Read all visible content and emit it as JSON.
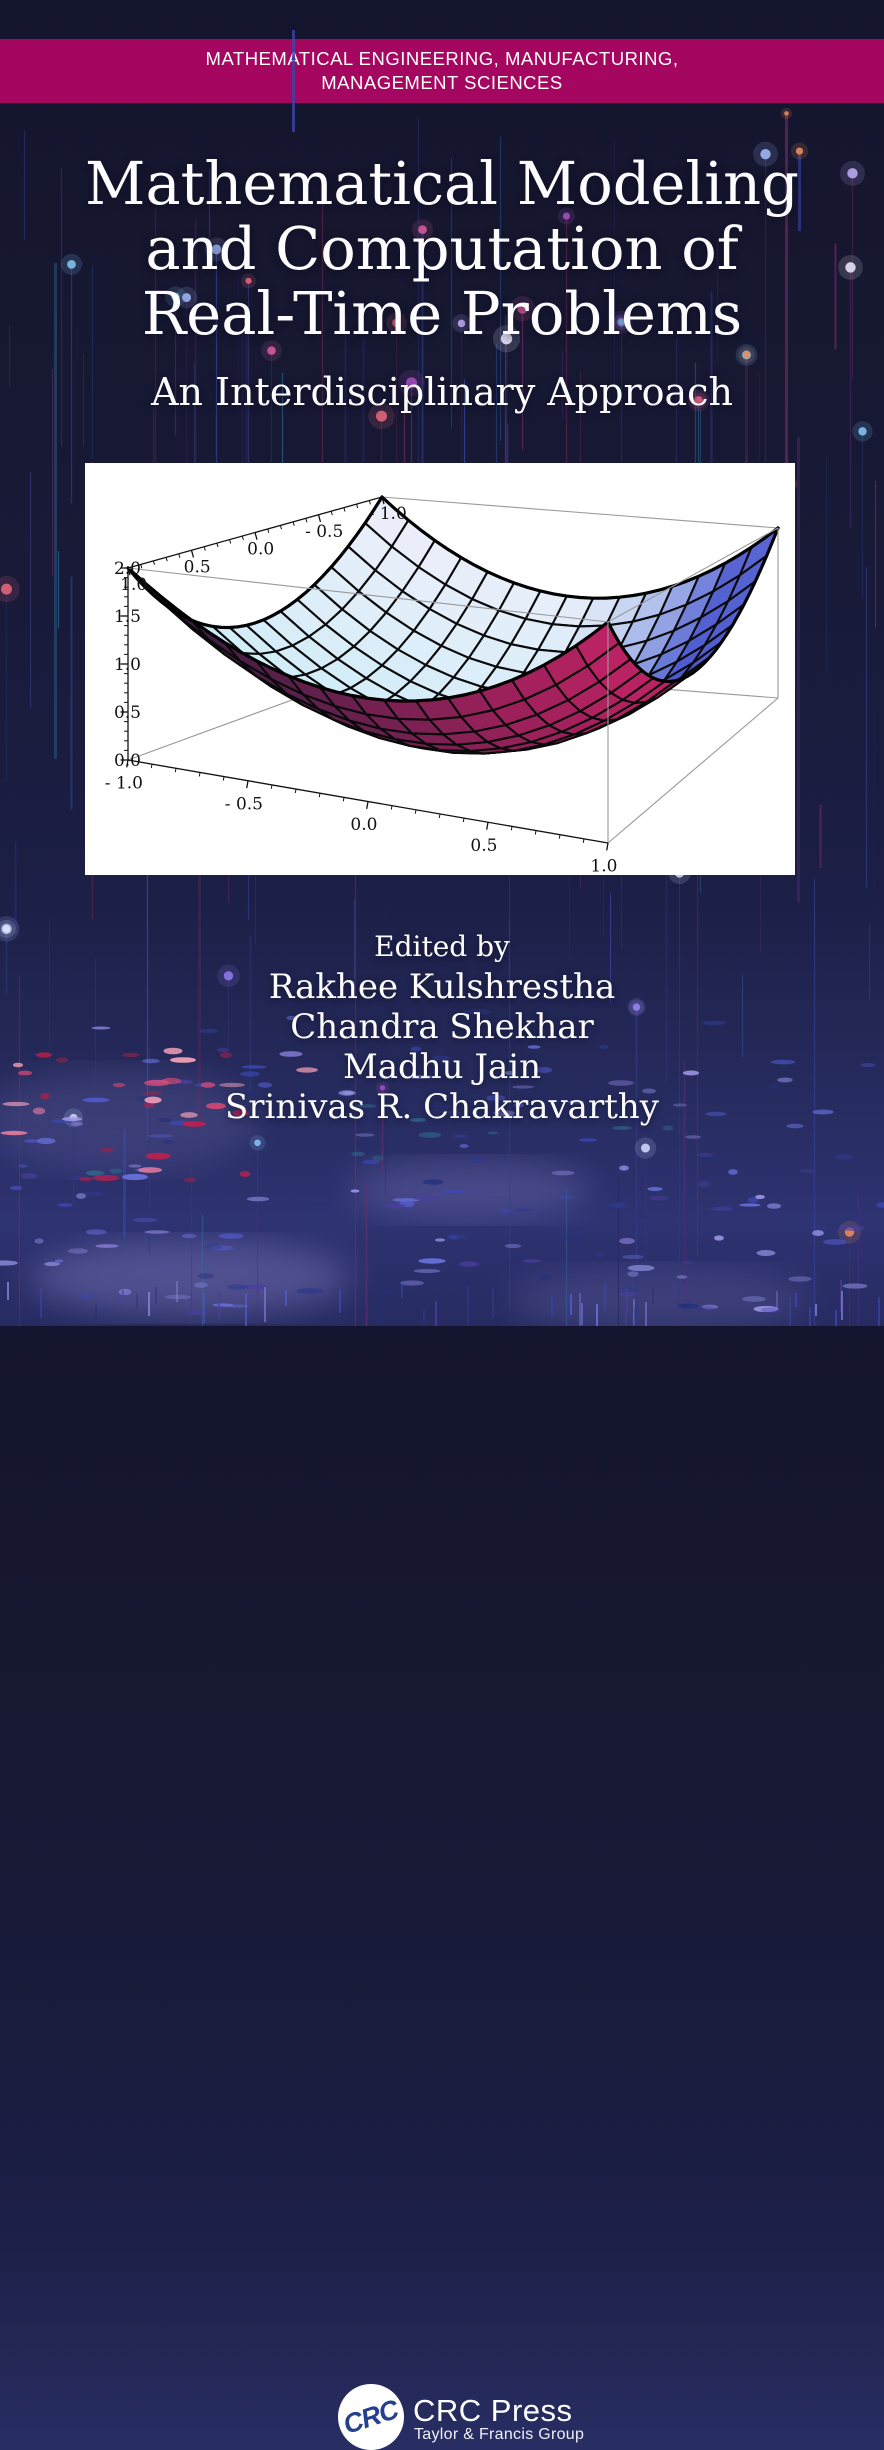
{
  "cover": {
    "series_banner": {
      "line1": "MATHEMATICAL ENGINEERING, MANUFACTURING,",
      "line2": "MANAGEMENT SCIENCES",
      "background_color": "#a5065f",
      "text_color": "#ffffff"
    },
    "title_lines": [
      "Mathematical Modeling",
      "and Computation of",
      "Real-Time Problems"
    ],
    "subtitle": "An Interdisciplinary Approach",
    "edited_by_label": "Edited by",
    "editors": [
      "Rakhee Kulshrestha",
      "Chandra Shekhar",
      "Madhu Jain",
      "Srinivas R. Chakravarthy"
    ],
    "publisher": {
      "logo_text": "CRC",
      "name": "CRC Press",
      "tagline": "Taylor & Francis Group",
      "logo_text_color": "#24408e"
    },
    "background": {
      "base_navy": "#16172f",
      "streak_colors": [
        "#23255c",
        "#2b2e6e",
        "#33377f",
        "#3a4fae",
        "#274683",
        "#4a2f86",
        "#5d2b79",
        "#722a63",
        "#8c2a57",
        "#2f6f9e",
        "#3c44a8"
      ],
      "head_colors": [
        "#8d77e8",
        "#b9a9f2",
        "#7fc0f2",
        "#e8e3f8",
        "#e0667a",
        "#e88b5a",
        "#d05a9a",
        "#9fb5f5",
        "#cfd4f8",
        "#a24fc0"
      ],
      "dash_colors": [
        "#3d49b8",
        "#5560d8",
        "#6f78e8",
        "#8d8fe0",
        "#4a3f9e",
        "#2f3a8e",
        "#23307a",
        "#8a7fd8"
      ],
      "red_dash_colors": [
        "#c21f4e",
        "#e04a72",
        "#ef7fa0",
        "#a81f46",
        "#f4a0b8"
      ],
      "teal_dash_color": "#2e6f8e",
      "glow_color": "#a89ce8"
    }
  },
  "chart_data": {
    "type": "surface3d",
    "title": "",
    "function": "z = x^2 + y^2",
    "x_range": [
      -1,
      1
    ],
    "y_range": [
      -1,
      1
    ],
    "z_range": [
      0,
      2
    ],
    "x_tick_labels": [
      "- 1.0",
      "- 0.5",
      "0.0",
      "0.5",
      "1.0"
    ],
    "x_tick_values": [
      -1,
      -0.5,
      0,
      0.5,
      1
    ],
    "y_tick_labels": [
      "1.0",
      "0.5",
      "0.0",
      "- 0.5",
      "- 1.0"
    ],
    "y_tick_values": [
      1,
      0.5,
      0,
      -0.5,
      -1
    ],
    "z_tick_labels": [
      "0.0",
      "0.5",
      "1.0",
      "1.5",
      "2.0"
    ],
    "z_tick_values": [
      0,
      0.5,
      1,
      1.5,
      2
    ],
    "minor_tick_step": 0.1,
    "mesh_divisions": 15,
    "z_grid_5x5": [
      [
        2,
        1.25,
        1,
        1.25,
        2
      ],
      [
        1.25,
        0.5,
        0.25,
        0.5,
        1.25
      ],
      [
        1,
        0.25,
        0,
        0.25,
        1
      ],
      [
        1.25,
        0.5,
        0.25,
        0.5,
        1.25
      ],
      [
        2,
        1.25,
        1,
        1.25,
        2
      ]
    ],
    "style": {
      "surface_top_cyan": "#c6edf6",
      "surface_top_blue": "#4050cc",
      "surface_top_white": "#f0eefb",
      "surface_under_crimson": "#ba2263",
      "surface_under_dark": "#341e40",
      "mesh_color": "#0a0a0a",
      "box_color": "#999999",
      "axis_color": "#111111",
      "panel_background": "#ffffff"
    }
  }
}
